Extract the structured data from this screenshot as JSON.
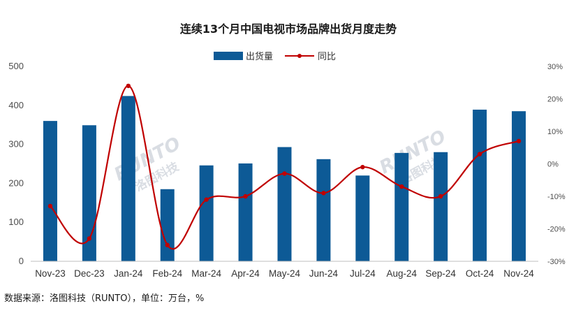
{
  "chart_data": {
    "type": "bar+line",
    "title": "连续13个月中国电视市场品牌出货月度走势",
    "categories": [
      "Nov-23",
      "Dec-23",
      "Jan-24",
      "Feb-24",
      "Mar-24",
      "Apr-24",
      "May-24",
      "Jun-24",
      "Jul-24",
      "Aug-24",
      "Sep-24",
      "Oct-24",
      "Nov-24"
    ],
    "series": [
      {
        "name": "出货量",
        "type": "bar",
        "axis": "left",
        "color": "#0d5a96",
        "values": [
          360,
          349,
          424,
          185,
          246,
          251,
          293,
          262,
          220,
          278,
          280,
          389,
          385
        ]
      },
      {
        "name": "同比",
        "type": "line",
        "axis": "right",
        "color": "#c00000",
        "values": [
          -13,
          -23,
          24,
          -25,
          -11,
          -10,
          -3,
          -9,
          -1,
          -7,
          -10,
          3,
          7
        ]
      }
    ],
    "y_left": {
      "min": 0,
      "max": 500,
      "ticks": [
        0,
        100,
        200,
        300,
        400,
        500
      ]
    },
    "y_right": {
      "min": -30,
      "max": 30,
      "ticks": [
        "-30%",
        "-20%",
        "-10%",
        "0%",
        "10%",
        "20%",
        "30%"
      ]
    },
    "legend_position": "top-center",
    "gridlines": false
  },
  "watermark": {
    "text1": "RUNTO",
    "text2": "洛图科技"
  },
  "footer": {
    "source": "数据来源：洛图科技（RUNTO），单位：万台，%"
  }
}
